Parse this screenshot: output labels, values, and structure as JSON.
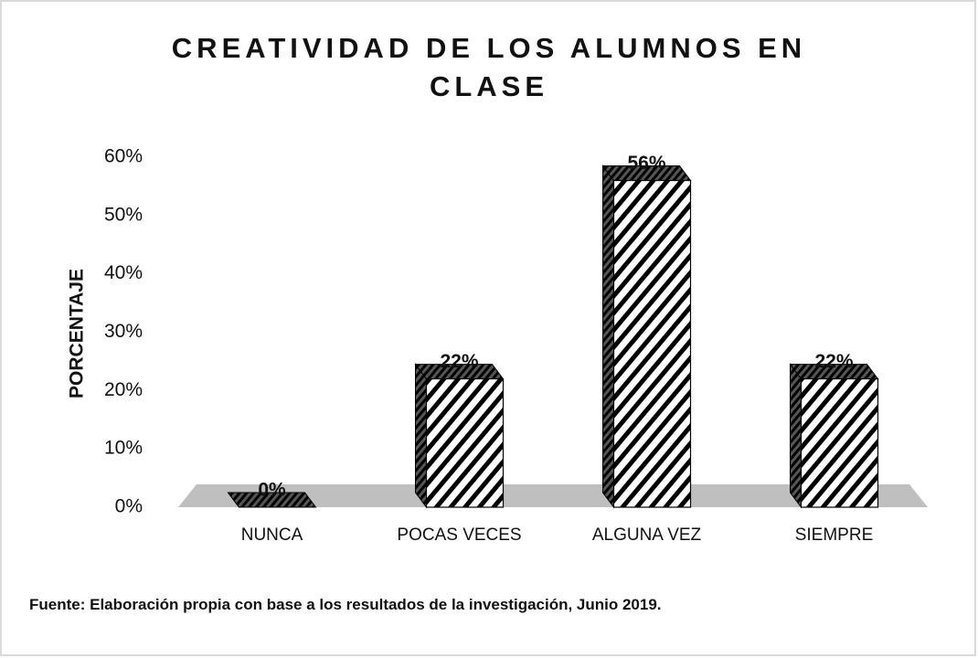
{
  "chart_data": {
    "type": "bar3d",
    "title": "CREATIVIDAD DE LOS ALUMNOS EN CLASE",
    "y_label": "PORCENTAJE",
    "note": "Fuente: Elaboración propia con base a los resultados de la investigación, Junio 2019.",
    "categories": [
      "NUNCA",
      "POCAS VECES",
      "ALGUNA VEZ",
      "SIEMPRE"
    ],
    "values": [
      0,
      22,
      56,
      22
    ],
    "value_labels": [
      "0%",
      "22%",
      "56%",
      "22%"
    ],
    "color": "#000000",
    "ylim": [
      0,
      60
    ],
    "yticks": [
      {
        "value": 0,
        "label": "0%"
      },
      {
        "value": 10,
        "label": "10%"
      },
      {
        "value": 20,
        "label": "20%"
      },
      {
        "value": 30,
        "label": "30%"
      },
      {
        "value": 40,
        "label": "40%"
      },
      {
        "value": 50,
        "label": "50%"
      },
      {
        "value": 60,
        "label": "60%"
      }
    ]
  }
}
